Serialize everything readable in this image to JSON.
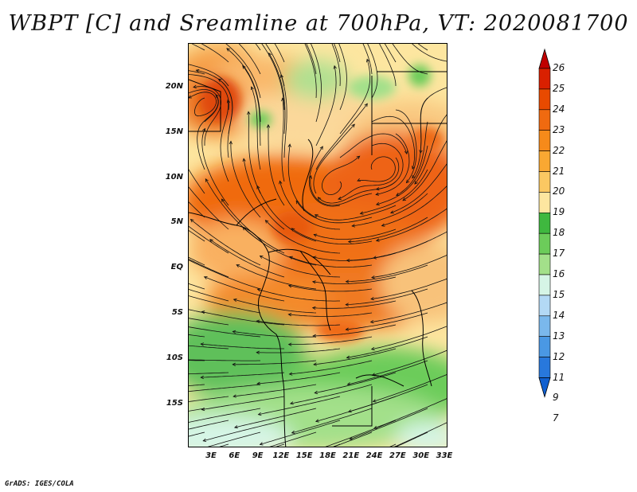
{
  "title": "WBPT [C] and Sreamline at 700hPa, VT: 2020081700",
  "footer": "GrADS: IGES/COLA",
  "lat_labels": [
    "20N",
    "15N",
    "10N",
    "5N",
    "EQ",
    "5S",
    "10S",
    "15S"
  ],
  "lon_labels": [
    "3E",
    "6E",
    "9E",
    "12E",
    "15E",
    "18E",
    "21E",
    "24E",
    "27E",
    "30E",
    "33E"
  ],
  "colorbar": {
    "labels": [
      "26",
      "25",
      "24",
      "23",
      "22",
      "21",
      "20",
      "19",
      "18",
      "17",
      "16",
      "15",
      "14",
      "13",
      "12",
      "11",
      "9",
      "7"
    ],
    "colors": [
      "#c00000",
      "#d92000",
      "#e84a00",
      "#f06a10",
      "#f68a1a",
      "#f9a832",
      "#fbc862",
      "#fde6a0",
      "#3fb83f",
      "#6ccc5a",
      "#a3e08a",
      "#d6f5e6",
      "#b3d9f5",
      "#7ab8ec",
      "#4a98e4",
      "#2878dc",
      "#1060d0"
    ]
  },
  "legend_meta": {
    "variable": "WBPT",
    "units": "C",
    "level": "700hPa"
  }
}
